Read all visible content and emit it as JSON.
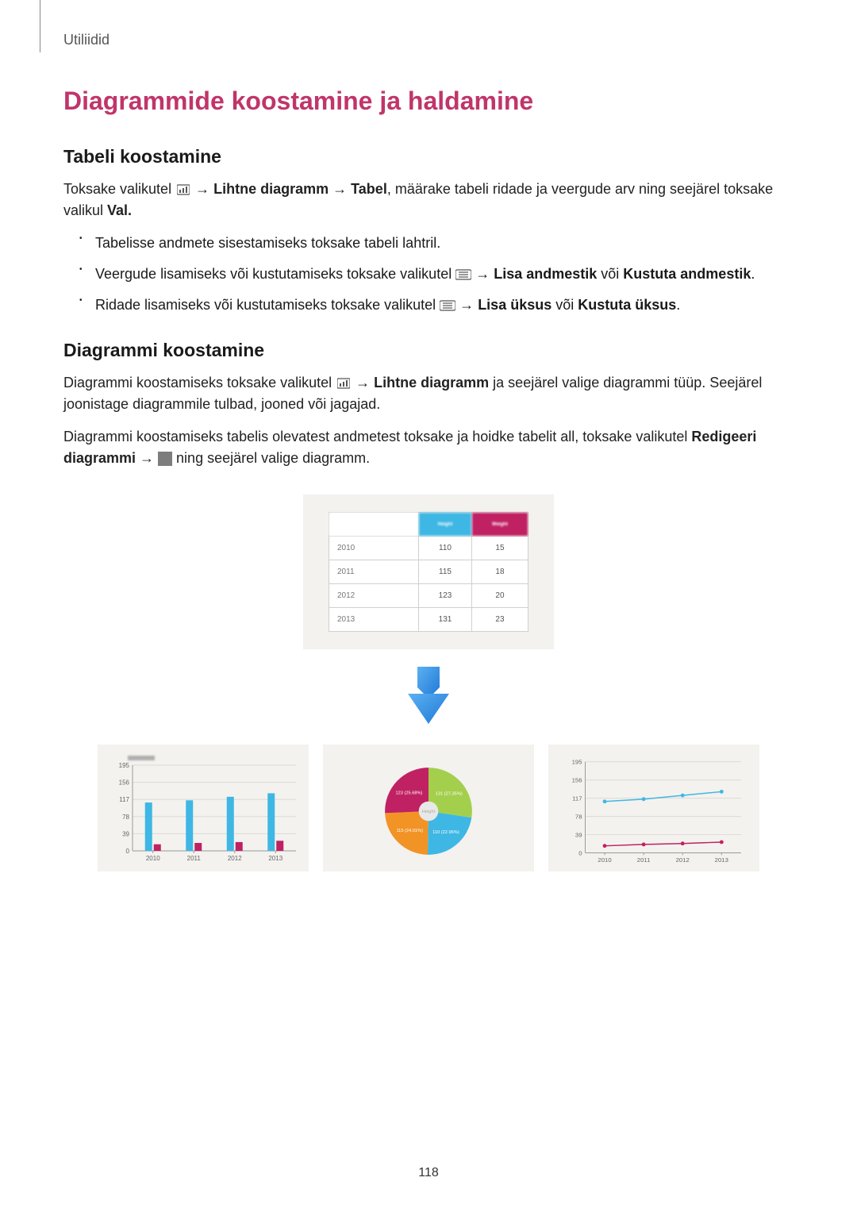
{
  "header": {
    "breadcrumb": "Utiliidid"
  },
  "title": "Diagrammide koostamine ja haldamine",
  "section1": {
    "heading": "Tabeli koostamine",
    "para1_a": "Toksake valikutel ",
    "para1_b": " → ",
    "para1_bold1": "Lihtne diagramm",
    "para1_c": " → ",
    "para1_bold2": "Tabel",
    "para1_d": ", määrake tabeli ridade ja veergude arv ning seejärel toksake valikul ",
    "para1_bold3": "Val.",
    "bullets": {
      "b1": "Tabelisse andmete sisestamiseks toksake tabeli lahtril.",
      "b2_a": "Veergude lisamiseks või kustutamiseks toksake valikutel ",
      "b2_b": " → ",
      "b2_bold1": "Lisa andmestik",
      "b2_c": " või ",
      "b2_bold2": "Kustuta andmestik",
      "b2_d": ".",
      "b3_a": "Ridade lisamiseks või kustutamiseks toksake valikutel ",
      "b3_b": " → ",
      "b3_bold1": "Lisa üksus",
      "b3_c": " või ",
      "b3_bold2": "Kustuta üksus",
      "b3_d": "."
    }
  },
  "section2": {
    "heading": "Diagrammi koostamine",
    "para1_a": "Diagrammi koostamiseks toksake valikutel ",
    "para1_b": " → ",
    "para1_bold1": "Lihtne diagramm",
    "para1_c": " ja seejärel valige diagrammi tüüp. Seejärel joonistage diagrammile tulbad, jooned või jagajad.",
    "para2_a": "Diagrammi koostamiseks tabelis olevatest andmetest toksake ja hoidke tabelit all, toksake valikutel ",
    "para2_bold1": "Redigeeri diagrammi",
    "para2_b": " → ",
    "para2_c": " ning seejärel valige diagramm."
  },
  "table": {
    "headers": [
      "",
      "Height",
      "Weight"
    ],
    "header_colors": [
      "#ffffff",
      "#3eb7e4",
      "#c02162"
    ],
    "rows": [
      [
        "2010",
        "110",
        "15"
      ],
      [
        "2011",
        "115",
        "18"
      ],
      [
        "2012",
        "123",
        "20"
      ],
      [
        "2013",
        "131",
        "23"
      ]
    ]
  },
  "charts": {
    "bar": {
      "type": "bar",
      "categories": [
        "2010",
        "2011",
        "2012",
        "2013"
      ],
      "series": [
        {
          "color": "#3eb7e4",
          "values": [
            110,
            115,
            123,
            131
          ]
        },
        {
          "color": "#c02162",
          "values": [
            15,
            18,
            20,
            23
          ]
        }
      ],
      "ymax": 195,
      "yticks": [
        0,
        39,
        78,
        117,
        156,
        195
      ],
      "bg": "#f3f2ef",
      "grid": "#dcdad4"
    },
    "pie": {
      "type": "pie",
      "slices": [
        {
          "label": "131 (27.35%)",
          "value": 27.35,
          "color": "#a4cf4d"
        },
        {
          "label": "110 (22.96%)",
          "value": 22.96,
          "color": "#3eb7e4"
        },
        {
          "label": "115 (24.01%)",
          "value": 24.01,
          "color": "#f29326"
        },
        {
          "label": "123 (25.68%)",
          "value": 25.68,
          "color": "#c02162"
        }
      ],
      "center_label": "Height",
      "center_color": "#e8e8e8"
    },
    "line": {
      "type": "line",
      "categories": [
        "2010",
        "2011",
        "2012",
        "2013"
      ],
      "series": [
        {
          "color": "#3eb7e4",
          "marker": "#3eb7e4",
          "values": [
            110,
            115,
            123,
            131
          ]
        },
        {
          "color": "#c02162",
          "marker": "#c02162",
          "values": [
            15,
            18,
            20,
            23
          ]
        }
      ],
      "ymax": 195,
      "yticks": [
        0,
        39,
        78,
        117,
        156,
        195
      ],
      "bg": "#f3f2ef",
      "grid": "#dcdad4"
    }
  },
  "footer": {
    "page_number": "118"
  },
  "arrow": {
    "color": "#2f8fe6"
  }
}
